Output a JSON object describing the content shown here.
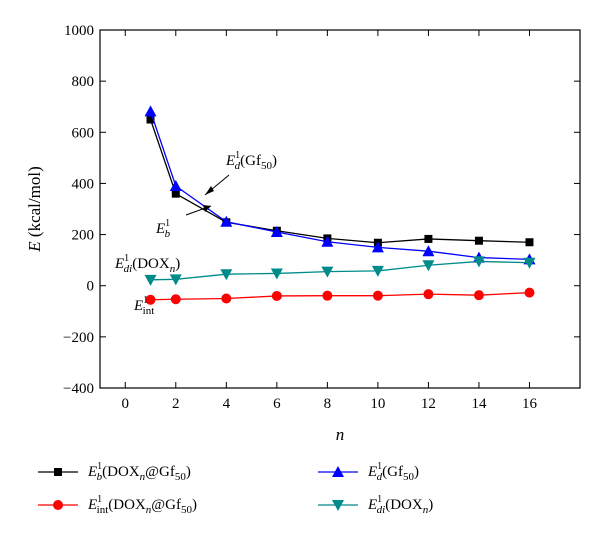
{
  "chart_data": {
    "type": "line",
    "x": [
      1,
      2,
      4,
      6,
      8,
      10,
      12,
      14,
      16
    ],
    "xlim": [
      -1,
      18
    ],
    "ylim": [
      -400,
      1000
    ],
    "xticks": [
      0,
      2,
      4,
      6,
      8,
      10,
      12,
      14,
      16
    ],
    "yticks": [
      -400,
      -200,
      0,
      200,
      400,
      600,
      800,
      1000
    ],
    "xtick_labels": [
      "0",
      "2",
      "4",
      "6",
      "8",
      "10",
      "12",
      "14",
      "16"
    ],
    "ytick_labels": [
      "−400",
      "−200",
      "0",
      "200",
      "400",
      "600",
      "800",
      "1000"
    ],
    "xlabel": "n",
    "ylabel": {
      "main": "E",
      "rest": " (kcal/mol)"
    },
    "grid": false,
    "legend_position": "bottom",
    "series": [
      {
        "key": "Eb",
        "color": "#000000",
        "marker": "square",
        "values": [
          650,
          360,
          248,
          215,
          185,
          168,
          183,
          176,
          170
        ],
        "legend": {
          "sym": "E",
          "sub": "b",
          "sup": "1",
          "body": "(DOX",
          "bsub": "n",
          "body2": "@Gf",
          "bsub2": "50",
          "tail": ")"
        }
      },
      {
        "key": "Ed",
        "color": "#0000ff",
        "marker": "triangle-up",
        "values": [
          682,
          390,
          250,
          210,
          172,
          150,
          135,
          110,
          103
        ],
        "legend": {
          "sym": "E",
          "sub": "d",
          "sup": "1",
          "body": "(Gf",
          "bsub": "50",
          "body2": "",
          "bsub2": "",
          "tail": ")"
        }
      },
      {
        "key": "Eint",
        "color": "#ff0000",
        "marker": "circle",
        "values": [
          -55,
          -53,
          -50,
          -40,
          -39,
          -39,
          -33,
          -37,
          -27
        ],
        "legend": {
          "sym": "E",
          "sub": "int",
          "sup": "1",
          "body": "(DOX",
          "bsub": "n",
          "body2": "@Gf",
          "bsub2": "50",
          "tail": ")"
        }
      },
      {
        "key": "Edi",
        "color": "#008b8b",
        "marker": "triangle-down",
        "values": [
          23,
          25,
          45,
          48,
          55,
          58,
          80,
          95,
          90
        ],
        "legend": {
          "sym": "E",
          "sub": "di",
          "sup": "1",
          "body": "(DOX",
          "bsub": "n",
          "body2": "",
          "bsub2": "",
          "tail": ")"
        }
      }
    ],
    "annotations": [
      {
        "sym": "E",
        "sub": "d",
        "sup": "1",
        "body": "(Gf",
        "bsub": "50",
        "tail": ")"
      },
      {
        "sym": "E",
        "sub": "b",
        "sup": "1",
        "body": "",
        "bsub": "",
        "tail": ""
      },
      {
        "sym": "E",
        "sub": "di",
        "sup": "1",
        "body": "(DOX",
        "bsub": "n",
        "tail": ")"
      },
      {
        "sym": "E",
        "sub": "int",
        "sup": "1",
        "body": "",
        "bsub": "",
        "tail": ""
      }
    ]
  }
}
